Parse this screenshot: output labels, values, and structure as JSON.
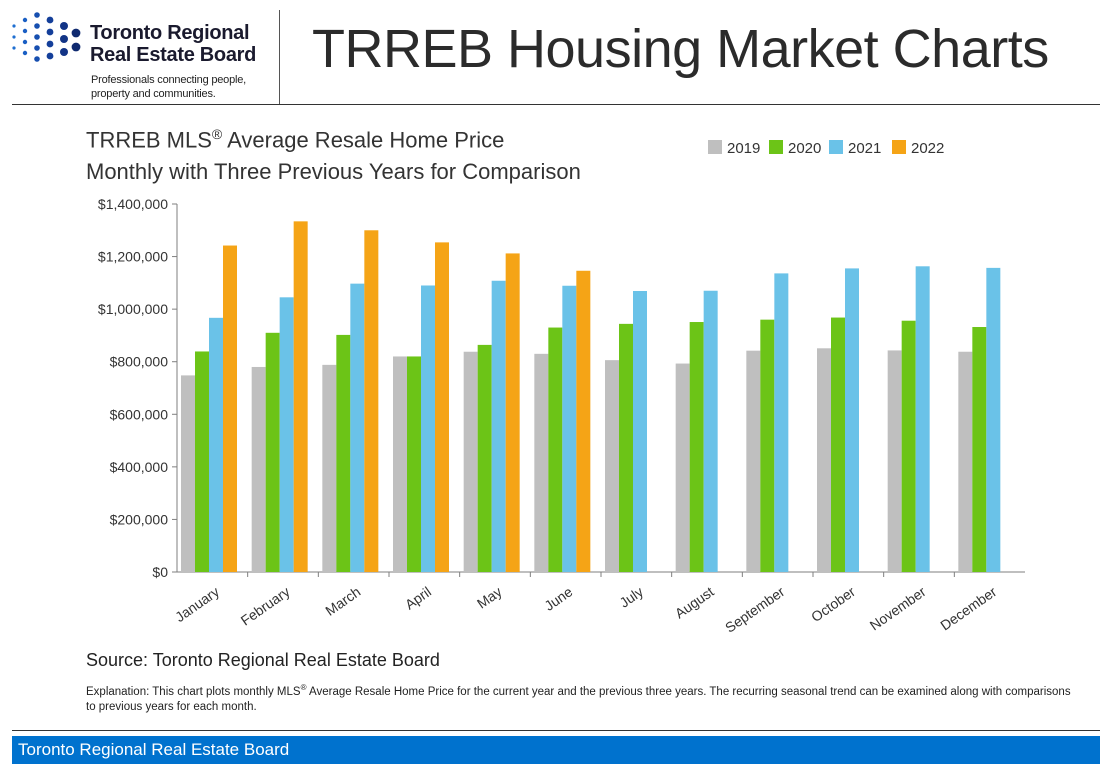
{
  "logo": {
    "line1": "Toronto Regional",
    "line2": "Real Estate Board",
    "tagline1": "Professionals connecting people,",
    "tagline2": "property and communities."
  },
  "page": {
    "title": "TRREB Housing Market Charts"
  },
  "source": "Source: Toronto Regional Real Estate Board",
  "explanation": {
    "before": "Explanation: This chart plots monthly MLS",
    "reg": "®",
    "after": " Average Resale Home Price for the current year and the previous three years. The recurring seasonal trend can be examined along with comparisons to previous years for each month."
  },
  "footer": {
    "text": "Toronto Regional Real Estate Board"
  },
  "chart_data": {
    "type": "bar",
    "title_line1_prefix": "TRREB MLS",
    "title_line1_reg": "®",
    "title_line1_suffix": " Average Resale Home Price",
    "title_line2": "Monthly with Three Previous Years for Comparison",
    "categories": [
      "January",
      "February",
      "March",
      "April",
      "May",
      "June",
      "July",
      "August",
      "September",
      "October",
      "November",
      "December"
    ],
    "series": [
      {
        "name": "2019",
        "color": "#bfbfbf",
        "values": [
          748000,
          780000,
          788000,
          820000,
          838000,
          830000,
          806000,
          793000,
          842000,
          851000,
          843000,
          838000
        ]
      },
      {
        "name": "2020",
        "color": "#6cc417",
        "values": [
          839000,
          910000,
          902000,
          820000,
          864000,
          930000,
          944000,
          951000,
          960000,
          968000,
          956000,
          932000
        ]
      },
      {
        "name": "2021",
        "color": "#6ac2e8",
        "values": [
          967000,
          1045000,
          1097000,
          1090000,
          1108000,
          1089000,
          1069000,
          1070000,
          1136000,
          1155000,
          1163000,
          1157000
        ]
      },
      {
        "name": "2022",
        "color": "#f5a416",
        "values": [
          1242000,
          1334000,
          1300000,
          1254000,
          1212000,
          1146000,
          null,
          null,
          null,
          null,
          null,
          null
        ]
      }
    ],
    "ylim": [
      0,
      1400000
    ],
    "yticks": [
      0,
      200000,
      400000,
      600000,
      800000,
      1000000,
      1200000,
      1400000
    ],
    "ytick_labels": [
      "$0",
      "$200,000",
      "$400,000",
      "$600,000",
      "$800,000",
      "$1,000,000",
      "$1,200,000",
      "$1,400,000"
    ],
    "xlabel": "",
    "ylabel": "",
    "legend_position": "top-right",
    "grid": false
  }
}
